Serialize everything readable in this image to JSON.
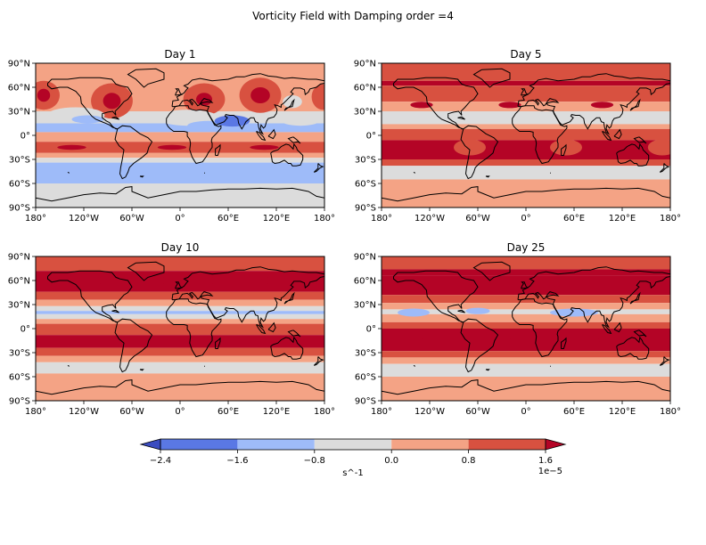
{
  "chart_data": {
    "type": "contourf",
    "title": "Vorticity Field with Damping order =4",
    "colorbar": {
      "levels": [
        -2.4,
        -1.6,
        -0.8,
        0.0,
        0.8,
        1.6
      ],
      "tick_labels": [
        "−2.4",
        "−1.6",
        "−0.8",
        "0.0",
        "0.8",
        "1.6"
      ],
      "colors": [
        "#5a78e4",
        "#9ebbf9",
        "#dcdcdc",
        "#f4a385",
        "#d85140",
        "#b40426"
      ],
      "under_color": "#3b4cc0",
      "over_color": "#b40426",
      "label": "s^-1",
      "offset": "1e−5",
      "extend": "both"
    },
    "x_ticks": [
      "180°",
      "120°W",
      "60°W",
      "0°",
      "60°E",
      "120°E",
      "180°"
    ],
    "y_ticks": [
      "90°N",
      "60°N",
      "30°N",
      "0°",
      "30°S",
      "60°S",
      "90°S"
    ],
    "x_range": [
      -180,
      180
    ],
    "y_range": [
      -90,
      90
    ],
    "panels": [
      {
        "title": "Day 1",
        "bands": [
          {
            "lat": [
              90,
              70
            ],
            "level": 0
          },
          {
            "lat": [
              70,
              30
            ],
            "level": 0
          },
          {
            "lat": [
              30,
              15
            ],
            "level": -1
          },
          {
            "lat": [
              15,
              4
            ],
            "level": -2
          },
          {
            "lat": [
              4,
              -8
            ],
            "level": 0
          },
          {
            "lat": [
              -8,
              -22
            ],
            "level": 1
          },
          {
            "lat": [
              -22,
              -28
            ],
            "level": 0
          },
          {
            "lat": [
              -28,
              -34
            ],
            "level": -1
          },
          {
            "lat": [
              -34,
              -60
            ],
            "level": -2
          },
          {
            "lat": [
              -60,
              -90
            ],
            "level": -1
          }
        ],
        "features": [
          {
            "lon": -170,
            "lat": 50,
            "dlon": 20,
            "dlat": 18,
            "level": 1
          },
          {
            "lon": -170,
            "lat": 50,
            "dlon": 8,
            "dlat": 8,
            "level": 2
          },
          {
            "lon": -85,
            "lat": 43,
            "dlon": 26,
            "dlat": 22,
            "level": 1
          },
          {
            "lon": -85,
            "lat": 43,
            "dlon": 11,
            "dlat": 10,
            "level": 2
          },
          {
            "lon": 30,
            "lat": 45,
            "dlon": 26,
            "dlat": 20,
            "level": 1
          },
          {
            "lon": 30,
            "lat": 45,
            "dlon": 10,
            "dlat": 8,
            "level": 2
          },
          {
            "lon": 100,
            "lat": 50,
            "dlon": 26,
            "dlat": 22,
            "level": 1
          },
          {
            "lon": 100,
            "lat": 50,
            "dlon": 12,
            "dlat": 10,
            "level": 2
          },
          {
            "lon": 178,
            "lat": 48,
            "dlon": 14,
            "dlat": 16,
            "level": 1
          },
          {
            "lon": -130,
            "lat": 25,
            "dlon": 36,
            "dlat": 10,
            "level": -1
          },
          {
            "lon": -115,
            "lat": 20,
            "dlon": 20,
            "dlat": 5,
            "level": -2
          },
          {
            "lon": 10,
            "lat": 22,
            "dlon": 38,
            "dlat": 10,
            "level": -1
          },
          {
            "lon": 35,
            "lat": 12,
            "dlon": 26,
            "dlat": 6,
            "level": -2
          },
          {
            "lon": 65,
            "lat": 18,
            "dlon": 22,
            "dlat": 7,
            "level": -3
          },
          {
            "lon": 150,
            "lat": 20,
            "dlon": 26,
            "dlat": 8,
            "level": -1
          },
          {
            "lon": 140,
            "lat": 42,
            "dlon": 12,
            "dlat": 8,
            "level": -1
          },
          {
            "lon": -135,
            "lat": -15,
            "dlon": 18,
            "dlat": 3,
            "level": 2
          },
          {
            "lon": -10,
            "lat": -15,
            "dlon": 18,
            "dlat": 3,
            "level": 2
          },
          {
            "lon": 105,
            "lat": -15,
            "dlon": 18,
            "dlat": 3,
            "level": 2
          }
        ]
      },
      {
        "title": "Day 5",
        "bands": [
          {
            "lat": [
              90,
              68
            ],
            "level": 1
          },
          {
            "lat": [
              68,
              62
            ],
            "level": 2
          },
          {
            "lat": [
              62,
              42
            ],
            "level": 1
          },
          {
            "lat": [
              42,
              30
            ],
            "level": 0
          },
          {
            "lat": [
              30,
              14
            ],
            "level": -1
          },
          {
            "lat": [
              14,
              8
            ],
            "level": 0
          },
          {
            "lat": [
              8,
              -6
            ],
            "level": 1
          },
          {
            "lat": [
              -6,
              -30
            ],
            "level": 2
          },
          {
            "lat": [
              -30,
              -38
            ],
            "level": 1
          },
          {
            "lat": [
              -38,
              -55
            ],
            "level": -1
          },
          {
            "lat": [
              -55,
              -90
            ],
            "level": 0
          }
        ],
        "features": [
          {
            "lon": -130,
            "lat": 38,
            "dlon": 14,
            "dlat": 4,
            "level": 2
          },
          {
            "lon": -20,
            "lat": 38,
            "dlon": 14,
            "dlat": 4,
            "level": 2
          },
          {
            "lon": 95,
            "lat": 38,
            "dlon": 14,
            "dlat": 4,
            "level": 2
          },
          {
            "lon": -125,
            "lat": -15,
            "dlon": 30,
            "dlat": 8,
            "level": 3
          },
          {
            "lon": -10,
            "lat": -15,
            "dlon": 30,
            "dlat": 8,
            "level": 3
          },
          {
            "lon": 110,
            "lat": -15,
            "dlon": 30,
            "dlat": 8,
            "level": 3
          },
          {
            "lon": -70,
            "lat": -15,
            "dlon": 20,
            "dlat": 10,
            "level": 1
          },
          {
            "lon": 50,
            "lat": -15,
            "dlon": 20,
            "dlat": 10,
            "level": 1
          },
          {
            "lon": 170,
            "lat": -15,
            "dlon": 18,
            "dlat": 10,
            "level": 1
          }
        ]
      },
      {
        "title": "Day 10",
        "bands": [
          {
            "lat": [
              90,
              72
            ],
            "level": 1
          },
          {
            "lat": [
              72,
              46
            ],
            "level": 2
          },
          {
            "lat": [
              46,
              36
            ],
            "level": 1
          },
          {
            "lat": [
              36,
              28
            ],
            "level": 0
          },
          {
            "lat": [
              28,
              22
            ],
            "level": -1
          },
          {
            "lat": [
              22,
              18
            ],
            "level": -2
          },
          {
            "lat": [
              18,
              12
            ],
            "level": -1
          },
          {
            "lat": [
              12,
              6
            ],
            "level": 0
          },
          {
            "lat": [
              6,
              -8
            ],
            "level": 1
          },
          {
            "lat": [
              -8,
              -24
            ],
            "level": 2
          },
          {
            "lat": [
              -24,
              -34
            ],
            "level": 1
          },
          {
            "lat": [
              -34,
              -42
            ],
            "level": 0
          },
          {
            "lat": [
              -42,
              -56
            ],
            "level": -1
          },
          {
            "lat": [
              -56,
              -90
            ],
            "level": 0
          }
        ],
        "features": [
          {
            "lon": -130,
            "lat": 60,
            "dlon": 40,
            "dlat": 6,
            "level": 3
          },
          {
            "lon": 10,
            "lat": 60,
            "dlon": 40,
            "dlat": 6,
            "level": 3
          },
          {
            "lon": 140,
            "lat": 60,
            "dlon": 40,
            "dlat": 6,
            "level": 3
          },
          {
            "lon": -120,
            "lat": -15,
            "dlon": 16,
            "dlat": 4,
            "level": 3
          },
          {
            "lon": 20,
            "lat": -15,
            "dlon": 16,
            "dlat": 4,
            "level": 3
          },
          {
            "lon": 140,
            "lat": -15,
            "dlon": 16,
            "dlat": 4,
            "level": 3
          }
        ]
      },
      {
        "title": "Day 25",
        "bands": [
          {
            "lat": [
              90,
              74
            ],
            "level": 1
          },
          {
            "lat": [
              74,
              66
            ],
            "level": 2
          },
          {
            "lat": [
              66,
              42
            ],
            "level": 3
          },
          {
            "lat": [
              42,
              32
            ],
            "level": 1
          },
          {
            "lat": [
              32,
              24
            ],
            "level": 0
          },
          {
            "lat": [
              24,
              18
            ],
            "level": -1
          },
          {
            "lat": [
              18,
              8
            ],
            "level": 0
          },
          {
            "lat": [
              8,
              0
            ],
            "level": 1
          },
          {
            "lat": [
              0,
              -28
            ],
            "level": 2
          },
          {
            "lat": [
              -28,
              -36
            ],
            "level": 1
          },
          {
            "lat": [
              -36,
              -44
            ],
            "level": 0
          },
          {
            "lat": [
              -44,
              -60
            ],
            "level": -1
          },
          {
            "lat": [
              -60,
              -90
            ],
            "level": 0
          }
        ],
        "features": [
          {
            "lon": -140,
            "lat": 20,
            "dlon": 20,
            "dlat": 5,
            "level": -2
          },
          {
            "lon": -60,
            "lat": 22,
            "dlon": 15,
            "dlat": 4,
            "level": -2
          },
          {
            "lon": 60,
            "lat": 20,
            "dlon": 30,
            "dlat": 5,
            "level": -2
          },
          {
            "lon": -150,
            "lat": -15,
            "dlon": 22,
            "dlat": 6,
            "level": 3
          },
          {
            "lon": -40,
            "lat": -15,
            "dlon": 22,
            "dlat": 6,
            "level": 3
          },
          {
            "lon": 70,
            "lat": -15,
            "dlon": 22,
            "dlat": 6,
            "level": 3
          },
          {
            "lon": 160,
            "lat": -15,
            "dlon": 18,
            "dlat": 6,
            "level": 3
          }
        ]
      }
    ]
  }
}
